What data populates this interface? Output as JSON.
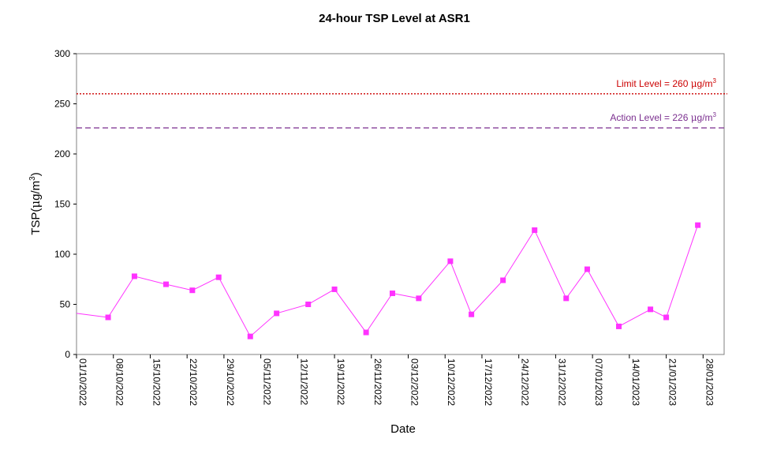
{
  "chart_data": {
    "type": "line",
    "title": "24-hour TSP Level at ASR1",
    "xlabel": "Date",
    "ylabel_parts": {
      "prefix": "TSP(",
      "mu": "μ",
      "unit": "g/m",
      "sup": "3",
      "suffix": ")"
    },
    "ylim": [
      0,
      300
    ],
    "yticks": [
      0,
      50,
      100,
      150,
      200,
      250,
      300
    ],
    "xlim": [
      "01/10/2022",
      "01/02/2023"
    ],
    "xticks": [
      "01/10/2022",
      "08/10/2022",
      "15/10/2022",
      "22/10/2022",
      "29/10/2022",
      "05/11/2022",
      "12/11/2022",
      "19/11/2022",
      "26/11/2022",
      "03/12/2022",
      "10/12/2022",
      "17/12/2022",
      "24/12/2022",
      "31/12/2022",
      "07/01/2023",
      "14/01/2023",
      "21/01/2023",
      "28/01/2023"
    ],
    "grid": false,
    "line_color": "#ff33ff",
    "series": [
      {
        "x": [
          "01/10/2022",
          "07/10/2022",
          "12/10/2022",
          "18/10/2022",
          "23/10/2022",
          "28/10/2022",
          "03/11/2022",
          "08/11/2022",
          "14/11/2022",
          "19/11/2022",
          "25/11/2022",
          "30/11/2022",
          "05/12/2022",
          "11/12/2022",
          "15/12/2022",
          "21/12/2022",
          "27/12/2022",
          "02/01/2023",
          "06/01/2023",
          "12/01/2023",
          "18/01/2023",
          "21/01/2023",
          "27/01/2023"
        ],
        "values": [
          41,
          37,
          78,
          70,
          64,
          77,
          18,
          41,
          50,
          65,
          22,
          61,
          56,
          93,
          40,
          74,
          124,
          56,
          85,
          28,
          45,
          37,
          129
        ],
        "markers_from_index": 1
      }
    ],
    "reference_lines": [
      {
        "value": 226,
        "label_prefix": "Action Level  = 226 ",
        "mu": "μ",
        "unit": "g/m",
        "sup": "3",
        "color": "#7b2f8f",
        "style": "dashed",
        "text_color": "#7b2f8f"
      },
      {
        "value": 260,
        "label_prefix": "Limit Level  = 260 ",
        "mu": "μ",
        "unit": "g/m",
        "sup": "3",
        "color": "#cc0000",
        "style": "dotted",
        "text_color": "#cc0000"
      }
    ]
  }
}
